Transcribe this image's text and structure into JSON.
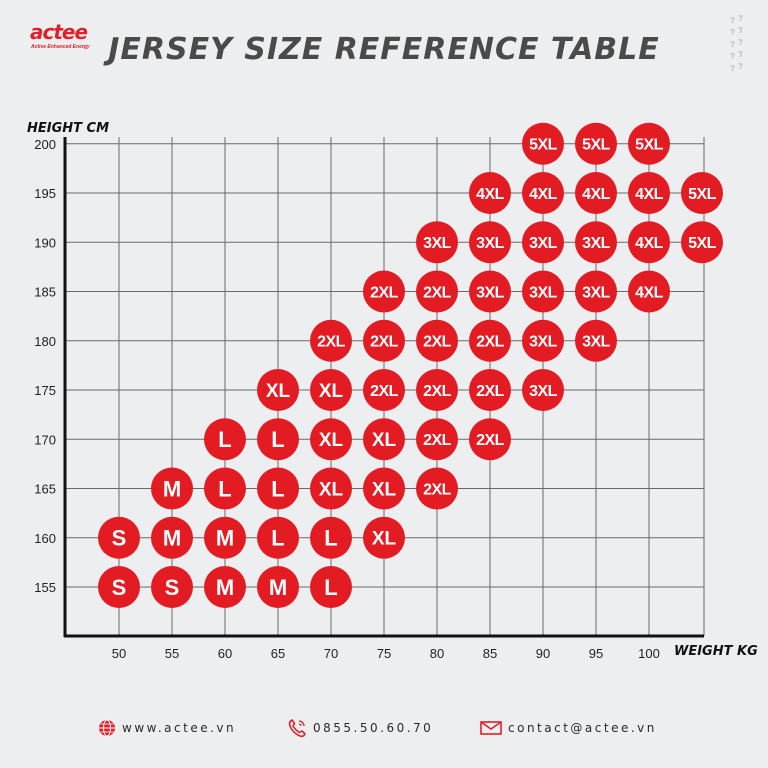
{
  "brand": {
    "name": "actee",
    "tagline": "Active Enhanced Energy",
    "color": "#e0202a"
  },
  "title": "JERSEY SIZE REFERENCE TABLE",
  "footer": {
    "website": "www.actee.vn",
    "phone": "0855.50.60.70",
    "email": "contact@actee.vn",
    "icons": [
      "globe-icon",
      "phone-icon",
      "mail-icon"
    ]
  },
  "chart_data": {
    "type": "scatter",
    "xlabel": "WEIGHT KG",
    "ylabel": "HEIGHT CM",
    "x_ticks": [
      50,
      55,
      60,
      65,
      70,
      75,
      80,
      85,
      90,
      95,
      100
    ],
    "y_ticks": [
      155,
      160,
      165,
      170,
      175,
      180,
      185,
      190,
      195,
      200
    ],
    "xlim": [
      47.5,
      102.5
    ],
    "ylim": [
      150,
      201
    ],
    "grid": true,
    "marker_color": "#e31b23",
    "points": [
      {
        "x": 50,
        "y": 155,
        "label": "S"
      },
      {
        "x": 55,
        "y": 155,
        "label": "S"
      },
      {
        "x": 60,
        "y": 155,
        "label": "M"
      },
      {
        "x": 65,
        "y": 155,
        "label": "M"
      },
      {
        "x": 70,
        "y": 155,
        "label": "L"
      },
      {
        "x": 50,
        "y": 160,
        "label": "S"
      },
      {
        "x": 55,
        "y": 160,
        "label": "M"
      },
      {
        "x": 60,
        "y": 160,
        "label": "M"
      },
      {
        "x": 65,
        "y": 160,
        "label": "L"
      },
      {
        "x": 70,
        "y": 160,
        "label": "L"
      },
      {
        "x": 75,
        "y": 160,
        "label": "XL"
      },
      {
        "x": 55,
        "y": 165,
        "label": "M"
      },
      {
        "x": 60,
        "y": 165,
        "label": "L"
      },
      {
        "x": 65,
        "y": 165,
        "label": "L"
      },
      {
        "x": 70,
        "y": 165,
        "label": "XL"
      },
      {
        "x": 75,
        "y": 165,
        "label": "XL"
      },
      {
        "x": 80,
        "y": 165,
        "label": "2XL"
      },
      {
        "x": 60,
        "y": 170,
        "label": "L"
      },
      {
        "x": 65,
        "y": 170,
        "label": "L"
      },
      {
        "x": 70,
        "y": 170,
        "label": "XL"
      },
      {
        "x": 75,
        "y": 170,
        "label": "XL"
      },
      {
        "x": 80,
        "y": 170,
        "label": "2XL"
      },
      {
        "x": 85,
        "y": 170,
        "label": "2XL"
      },
      {
        "x": 65,
        "y": 175,
        "label": "XL"
      },
      {
        "x": 70,
        "y": 175,
        "label": "XL"
      },
      {
        "x": 75,
        "y": 175,
        "label": "2XL"
      },
      {
        "x": 80,
        "y": 175,
        "label": "2XL"
      },
      {
        "x": 85,
        "y": 175,
        "label": "2XL"
      },
      {
        "x": 90,
        "y": 175,
        "label": "3XL"
      },
      {
        "x": 70,
        "y": 180,
        "label": "2XL"
      },
      {
        "x": 75,
        "y": 180,
        "label": "2XL"
      },
      {
        "x": 80,
        "y": 180,
        "label": "2XL"
      },
      {
        "x": 85,
        "y": 180,
        "label": "2XL"
      },
      {
        "x": 90,
        "y": 180,
        "label": "3XL"
      },
      {
        "x": 95,
        "y": 180,
        "label": "3XL"
      },
      {
        "x": 75,
        "y": 185,
        "label": "2XL"
      },
      {
        "x": 80,
        "y": 185,
        "label": "2XL"
      },
      {
        "x": 85,
        "y": 185,
        "label": "3XL"
      },
      {
        "x": 90,
        "y": 185,
        "label": "3XL"
      },
      {
        "x": 95,
        "y": 185,
        "label": "3XL"
      },
      {
        "x": 100,
        "y": 185,
        "label": "4XL"
      },
      {
        "x": 80,
        "y": 190,
        "label": "3XL"
      },
      {
        "x": 85,
        "y": 190,
        "label": "3XL"
      },
      {
        "x": 90,
        "y": 190,
        "label": "3XL"
      },
      {
        "x": 95,
        "y": 190,
        "label": "3XL"
      },
      {
        "x": 100,
        "y": 190,
        "label": "4XL"
      },
      {
        "x": 105,
        "y": 190,
        "label": "5XL"
      },
      {
        "x": 85,
        "y": 195,
        "label": "4XL"
      },
      {
        "x": 90,
        "y": 195,
        "label": "4XL"
      },
      {
        "x": 95,
        "y": 195,
        "label": "4XL"
      },
      {
        "x": 100,
        "y": 195,
        "label": "4XL"
      },
      {
        "x": 105,
        "y": 195,
        "label": "5XL"
      },
      {
        "x": 90,
        "y": 200,
        "label": "5XL"
      },
      {
        "x": 95,
        "y": 200,
        "label": "5XL"
      },
      {
        "x": 100,
        "y": 200,
        "label": "5XL"
      }
    ]
  }
}
